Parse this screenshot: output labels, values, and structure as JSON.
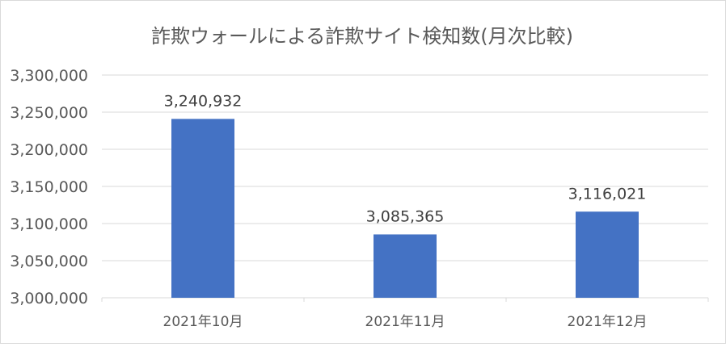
{
  "chart_data": {
    "type": "bar",
    "title": "詐欺ウォールによる詐欺サイト検知数(月次比較)",
    "categories": [
      "2021年10月",
      "2021年11月",
      "2021年12月"
    ],
    "values": [
      3240932,
      3085365,
      3116021
    ],
    "value_labels": [
      "3,240,932",
      "3,085,365",
      "3,116,021"
    ],
    "ylim": [
      3000000,
      3300000
    ],
    "yticks": [
      3000000,
      3050000,
      3100000,
      3150000,
      3200000,
      3250000,
      3300000
    ],
    "ytick_labels": [
      "3,000,000",
      "3,050,000",
      "3,100,000",
      "3,150,000",
      "3,200,000",
      "3,250,000",
      "3,300,000"
    ],
    "grid": true,
    "bar_color": "#4472c4",
    "gridline_color": "#d9d9d9",
    "text_color": "#595959"
  }
}
